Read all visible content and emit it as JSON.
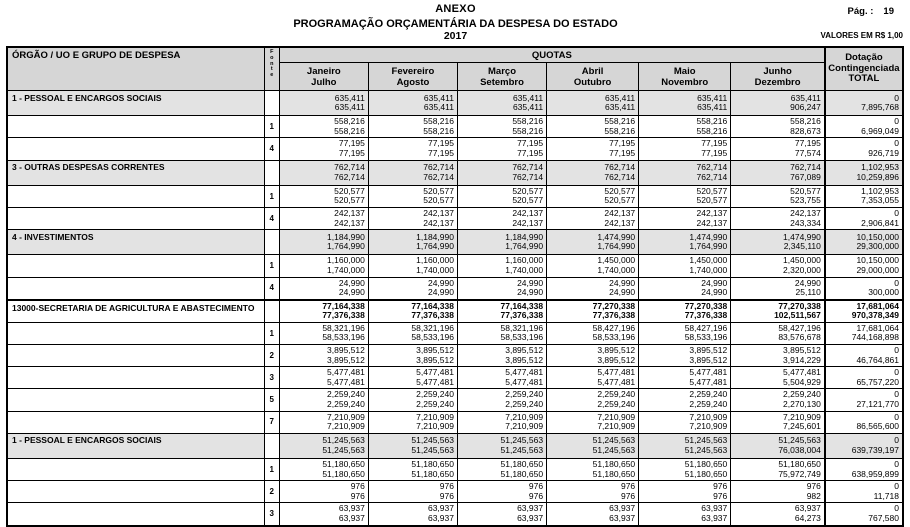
{
  "page": {
    "title_line1": "ANEXO",
    "title_line2": "PROGRAMAÇÃO ORÇAMENTÁRIA DA DESPESA DO ESTADO",
    "title_line3": "2017",
    "page_label": "Pág. :",
    "page_number": "19",
    "currency_note": "VALORES EM R$ 1,00"
  },
  "table": {
    "org_header": "ÓRGÃO / UO  E GRUPO DE DESPESA",
    "fonte_header": "F\no\nn\nt\ne",
    "quotas_header": "QUOTAS",
    "total_header": "Dotação\nContingenciada\nTOTAL",
    "month_columns": [
      "Janeiro\nJulho",
      "Fevereiro\nAgosto",
      "Março\nSetembro",
      "Abril\nOutubro",
      "Maio\nNovembro",
      "Junho\nDezembro"
    ],
    "rows": [
      {
        "type": "group",
        "label": "1 - PESSOAL E ENCARGOS SOCIAIS",
        "fonte": "",
        "line1": [
          "635,411",
          "635,411",
          "635,411",
          "635,411",
          "635,411",
          "635,411",
          "0"
        ],
        "line2": [
          "635,411",
          "635,411",
          "635,411",
          "635,411",
          "635,411",
          "906,247",
          "7,895,768"
        ]
      },
      {
        "type": "fonte",
        "label": "",
        "fonte": "1",
        "line1": [
          "558,216",
          "558,216",
          "558,216",
          "558,216",
          "558,216",
          "558,216",
          "0"
        ],
        "line2": [
          "558,216",
          "558,216",
          "558,216",
          "558,216",
          "558,216",
          "828,673",
          "6,969,049"
        ]
      },
      {
        "type": "fonte",
        "label": "",
        "fonte": "4",
        "line1": [
          "77,195",
          "77,195",
          "77,195",
          "77,195",
          "77,195",
          "77,195",
          "0"
        ],
        "line2": [
          "77,195",
          "77,195",
          "77,195",
          "77,195",
          "77,195",
          "77,574",
          "926,719"
        ]
      },
      {
        "type": "group",
        "label": "3 - OUTRAS DESPESAS CORRENTES",
        "fonte": "",
        "line1": [
          "762,714",
          "762,714",
          "762,714",
          "762,714",
          "762,714",
          "762,714",
          "1,102,953"
        ],
        "line2": [
          "762,714",
          "762,714",
          "762,714",
          "762,714",
          "762,714",
          "767,089",
          "10,259,896"
        ]
      },
      {
        "type": "fonte",
        "label": "",
        "fonte": "1",
        "line1": [
          "520,577",
          "520,577",
          "520,577",
          "520,577",
          "520,577",
          "520,577",
          "1,102,953"
        ],
        "line2": [
          "520,577",
          "520,577",
          "520,577",
          "520,577",
          "520,577",
          "523,755",
          "7,353,055"
        ]
      },
      {
        "type": "fonte",
        "label": "",
        "fonte": "4",
        "line1": [
          "242,137",
          "242,137",
          "242,137",
          "242,137",
          "242,137",
          "242,137",
          "0"
        ],
        "line2": [
          "242,137",
          "242,137",
          "242,137",
          "242,137",
          "242,137",
          "243,334",
          "2,906,841"
        ]
      },
      {
        "type": "group",
        "label": "4 - INVESTIMENTOS",
        "fonte": "",
        "line1": [
          "1,184,990",
          "1,184,990",
          "1,184,990",
          "1,474,990",
          "1,474,990",
          "1,474,990",
          "10,150,000"
        ],
        "line2": [
          "1,764,990",
          "1,764,990",
          "1,764,990",
          "1,764,990",
          "1,764,990",
          "2,345,110",
          "29,300,000"
        ]
      },
      {
        "type": "fonte",
        "label": "",
        "fonte": "1",
        "line1": [
          "1,160,000",
          "1,160,000",
          "1,160,000",
          "1,450,000",
          "1,450,000",
          "1,450,000",
          "10,150,000"
        ],
        "line2": [
          "1,740,000",
          "1,740,000",
          "1,740,000",
          "1,740,000",
          "1,740,000",
          "2,320,000",
          "29,000,000"
        ]
      },
      {
        "type": "fonte",
        "label": "",
        "fonte": "4",
        "line1": [
          "24,990",
          "24,990",
          "24,990",
          "24,990",
          "24,990",
          "24,990",
          "0"
        ],
        "line2": [
          "24,990",
          "24,990",
          "24,990",
          "24,990",
          "24,990",
          "25,110",
          "300,000"
        ]
      },
      {
        "type": "section",
        "label": "13000-SECRETARIA DE AGRICULTURA E ABASTECIMENTO",
        "fonte": "",
        "line1": [
          "77,164,338",
          "77,164,338",
          "77,164,338",
          "77,270,338",
          "77,270,338",
          "77,270,338",
          "17,681,064"
        ],
        "line2": [
          "77,376,338",
          "77,376,338",
          "77,376,338",
          "77,376,338",
          "77,376,338",
          "102,511,567",
          "970,378,349"
        ]
      },
      {
        "type": "fonte",
        "label": "",
        "fonte": "1",
        "line1": [
          "58,321,196",
          "58,321,196",
          "58,321,196",
          "58,427,196",
          "58,427,196",
          "58,427,196",
          "17,681,064"
        ],
        "line2": [
          "58,533,196",
          "58,533,196",
          "58,533,196",
          "58,533,196",
          "58,533,196",
          "83,576,678",
          "744,168,898"
        ]
      },
      {
        "type": "fonte",
        "label": "",
        "fonte": "2",
        "line1": [
          "3,895,512",
          "3,895,512",
          "3,895,512",
          "3,895,512",
          "3,895,512",
          "3,895,512",
          "0"
        ],
        "line2": [
          "3,895,512",
          "3,895,512",
          "3,895,512",
          "3,895,512",
          "3,895,512",
          "3,914,229",
          "46,764,861"
        ]
      },
      {
        "type": "fonte",
        "label": "",
        "fonte": "3",
        "line1": [
          "5,477,481",
          "5,477,481",
          "5,477,481",
          "5,477,481",
          "5,477,481",
          "5,477,481",
          "0"
        ],
        "line2": [
          "5,477,481",
          "5,477,481",
          "5,477,481",
          "5,477,481",
          "5,477,481",
          "5,504,929",
          "65,757,220"
        ]
      },
      {
        "type": "fonte",
        "label": "",
        "fonte": "5",
        "line1": [
          "2,259,240",
          "2,259,240",
          "2,259,240",
          "2,259,240",
          "2,259,240",
          "2,259,240",
          "0"
        ],
        "line2": [
          "2,259,240",
          "2,259,240",
          "2,259,240",
          "2,259,240",
          "2,259,240",
          "2,270,130",
          "27,121,770"
        ]
      },
      {
        "type": "fonte",
        "label": "",
        "fonte": "7",
        "line1": [
          "7,210,909",
          "7,210,909",
          "7,210,909",
          "7,210,909",
          "7,210,909",
          "7,210,909",
          "0"
        ],
        "line2": [
          "7,210,909",
          "7,210,909",
          "7,210,909",
          "7,210,909",
          "7,210,909",
          "7,245,601",
          "86,565,600"
        ]
      },
      {
        "type": "group",
        "label": "1 - PESSOAL E ENCARGOS SOCIAIS",
        "fonte": "",
        "line1": [
          "51,245,563",
          "51,245,563",
          "51,245,563",
          "51,245,563",
          "51,245,563",
          "51,245,563",
          "0"
        ],
        "line2": [
          "51,245,563",
          "51,245,563",
          "51,245,563",
          "51,245,563",
          "51,245,563",
          "76,038,004",
          "639,739,197"
        ]
      },
      {
        "type": "fonte",
        "label": "",
        "fonte": "1",
        "line1": [
          "51,180,650",
          "51,180,650",
          "51,180,650",
          "51,180,650",
          "51,180,650",
          "51,180,650",
          "0"
        ],
        "line2": [
          "51,180,650",
          "51,180,650",
          "51,180,650",
          "51,180,650",
          "51,180,650",
          "75,972,749",
          "638,959,899"
        ]
      },
      {
        "type": "fonte",
        "label": "",
        "fonte": "2",
        "line1": [
          "976",
          "976",
          "976",
          "976",
          "976",
          "976",
          "0"
        ],
        "line2": [
          "976",
          "976",
          "976",
          "976",
          "976",
          "982",
          "11,718"
        ]
      },
      {
        "type": "fonte",
        "label": "",
        "fonte": "3",
        "line1": [
          "63,937",
          "63,937",
          "63,937",
          "63,937",
          "63,937",
          "63,937",
          "0"
        ],
        "line2": [
          "63,937",
          "63,937",
          "63,937",
          "63,937",
          "63,937",
          "64,273",
          "767,580"
        ]
      }
    ]
  }
}
